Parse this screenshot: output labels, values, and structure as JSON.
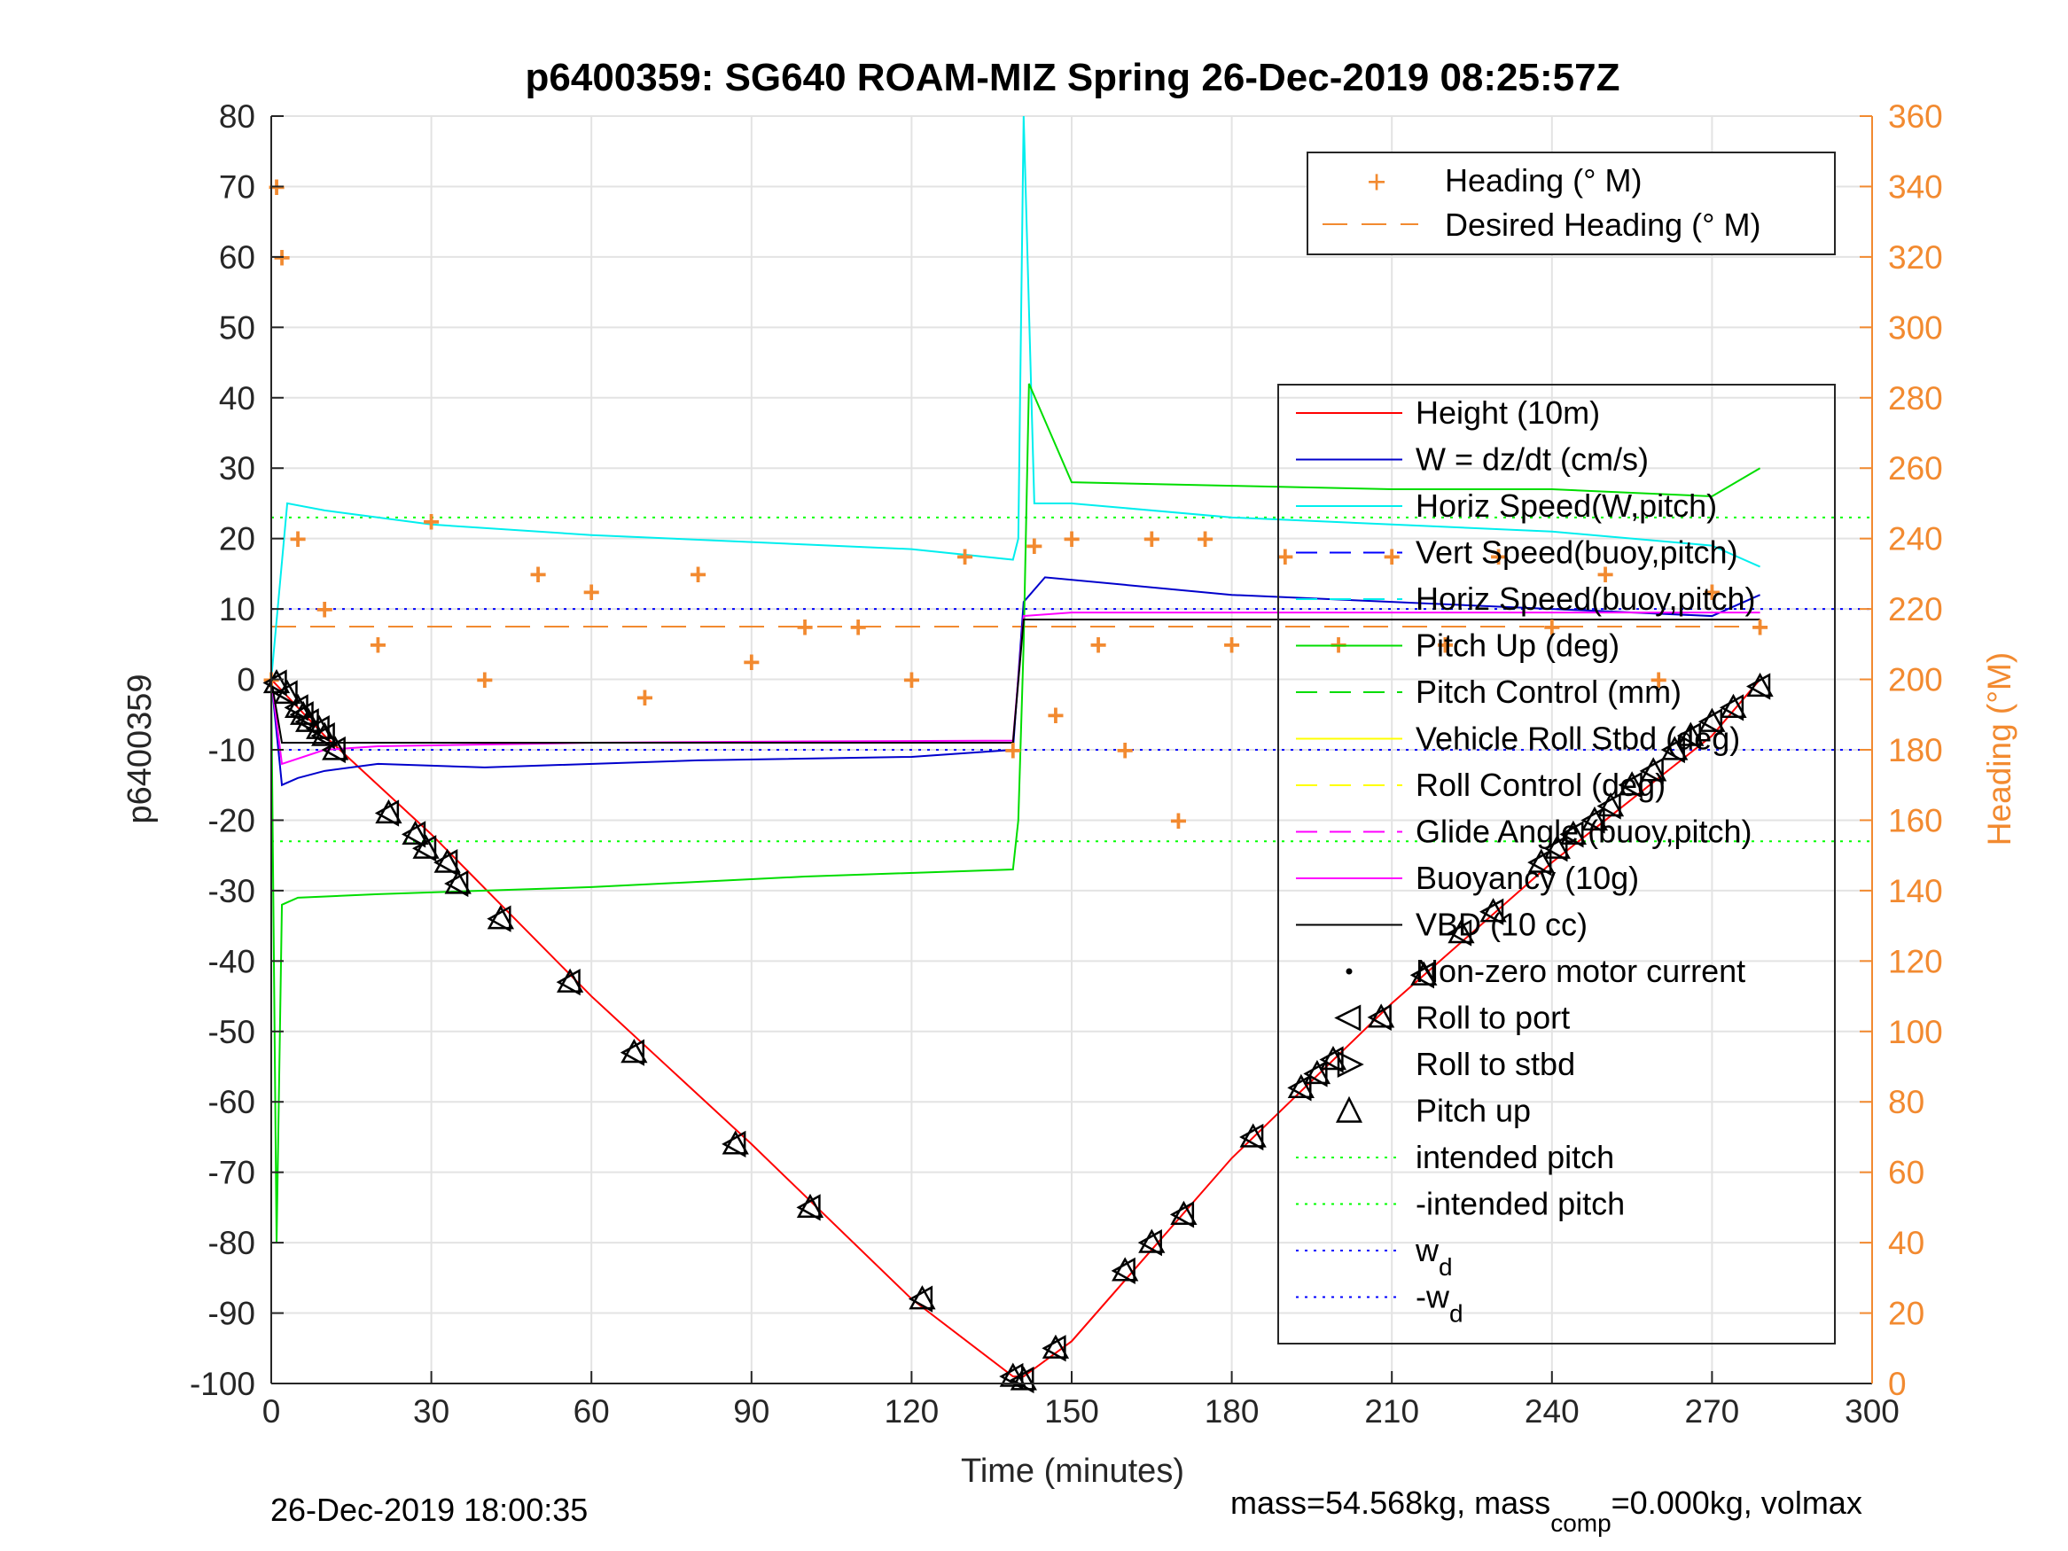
{
  "chart_data": {
    "type": "line",
    "title": "p6400359: SG640 ROAM-MIZ Spring 26-Dec-2019 08:25:57Z",
    "xlabel": "Time (minutes)",
    "ylabel": "p6400359",
    "ylabel_right": "Heading (°M)",
    "xlim": [
      0,
      300
    ],
    "ylim": [
      -100,
      80
    ],
    "ylim_right": [
      0,
      360
    ],
    "x_ticks": [
      "0",
      "30",
      "60",
      "90",
      "120",
      "150",
      "180",
      "210",
      "240",
      "270",
      "300"
    ],
    "y_ticks": [
      "80",
      "70",
      "60",
      "50",
      "40",
      "30",
      "20",
      "10",
      "0",
      "-10",
      "-20",
      "-30",
      "-40",
      "-50",
      "-60",
      "-70",
      "-80",
      "-90",
      "-100"
    ],
    "y_right_ticks": [
      "360",
      "340",
      "320",
      "300",
      "280",
      "260",
      "240",
      "220",
      "200",
      "180",
      "160",
      "140",
      "120",
      "100",
      "80",
      "60",
      "40",
      "20",
      "0"
    ],
    "grid": true,
    "legend_top": [
      "Heading (° M)",
      "Desired Heading (° M)"
    ],
    "legend_main": [
      {
        "label": "Height (10m)",
        "color": "#ff0000",
        "style": "solid"
      },
      {
        "label": "W = dz/dt (cm/s)",
        "color": "#0000cc",
        "style": "solid"
      },
      {
        "label": "Horiz Speed(W,pitch)",
        "color": "#00eeee",
        "style": "solid"
      },
      {
        "label": "Vert Speed(buoy,pitch)",
        "color": "#0000ff",
        "style": "dashed"
      },
      {
        "label": "Horiz Speed(buoy,pitch)",
        "color": "#00eeee",
        "style": "dashed"
      },
      {
        "label": "Pitch Up (deg)",
        "color": "#00dd00",
        "style": "solid"
      },
      {
        "label": "Pitch Control (mm)",
        "color": "#00dd00",
        "style": "dashed"
      },
      {
        "label": "Vehicle Roll Stbd (deg)",
        "color": "#ffff00",
        "style": "solid"
      },
      {
        "label": "Roll Control (deg)",
        "color": "#ffff00",
        "style": "dashed"
      },
      {
        "label": "Glide Angle (buoy,pitch)",
        "color": "#ff00ff",
        "style": "dashed"
      },
      {
        "label": "Buoyancy (10g)",
        "color": "#ff00ff",
        "style": "solid"
      },
      {
        "label": "VBD (10 cc)",
        "color": "#000000",
        "style": "solid"
      },
      {
        "label": "Non-zero motor current",
        "color": "#000000",
        "style": "dot"
      },
      {
        "label": "Roll to port",
        "color": "#000000",
        "style": "tri-left"
      },
      {
        "label": "Roll to stbd",
        "color": "#000000",
        "style": "tri-right"
      },
      {
        "label": "Pitch up",
        "color": "#000000",
        "style": "tri-up"
      },
      {
        "label": "intended pitch",
        "color": "#00ff00",
        "style": "dotted"
      },
      {
        "label": "-intended pitch",
        "color": "#00ff00",
        "style": "dotted"
      },
      {
        "label": "w",
        "sub": "d",
        "color": "#0000ff",
        "style": "dotted"
      },
      {
        "label": "-w",
        "sub": "d",
        "color": "#0000ff",
        "style": "dotted"
      }
    ],
    "series": [
      {
        "name": "Height (10m)",
        "x": [
          0,
          10,
          30,
          60,
          90,
          120,
          139,
          141,
          150,
          180,
          210,
          240,
          270,
          279
        ],
        "y": [
          0,
          -8,
          -22,
          -45,
          -66,
          -88,
          -99,
          -99,
          -94,
          -68,
          -46,
          -26,
          -8,
          0
        ]
      },
      {
        "name": "W = dz/dt (cm/s)",
        "x": [
          0,
          2,
          5,
          10,
          20,
          40,
          80,
          120,
          139,
          141,
          145,
          180,
          210,
          240,
          270,
          279
        ],
        "y": [
          0,
          -15,
          -14,
          -13,
          -12,
          -12.5,
          -11.5,
          -11,
          -10,
          11,
          14.5,
          12,
          11,
          10,
          9,
          12
        ]
      },
      {
        "name": "Horiz Speed(W,pitch)",
        "x": [
          0,
          3,
          10,
          30,
          60,
          90,
          120,
          139,
          140,
          141,
          143,
          150,
          180,
          210,
          240,
          270,
          279
        ],
        "y": [
          0,
          25,
          24,
          22,
          20.5,
          19.5,
          18.5,
          17,
          20,
          80,
          25,
          25,
          23,
          22,
          21,
          19,
          16
        ]
      },
      {
        "name": "Pitch Up (deg)",
        "x": [
          0,
          1,
          2,
          5,
          20,
          60,
          100,
          139,
          140,
          141,
          142,
          150,
          180,
          210,
          240,
          270,
          279
        ],
        "y": [
          0,
          -80,
          -32,
          -31,
          -30.5,
          -29.5,
          -28,
          -27,
          -20,
          5,
          42,
          28,
          27.5,
          27,
          27,
          26,
          30
        ]
      },
      {
        "name": "Buoyancy (10g)",
        "x": [
          0,
          2,
          10,
          20,
          60,
          100,
          139,
          141,
          150,
          279
        ],
        "y": [
          0,
          -12,
          -10,
          -9.5,
          -9,
          -8.8,
          -8.7,
          9,
          9.5,
          9.5
        ]
      },
      {
        "name": "VBD (10 cc)",
        "x": [
          0,
          2,
          10,
          60,
          139,
          141,
          279
        ],
        "y": [
          0,
          -9,
          -9,
          -9,
          -9,
          8.5,
          8.5
        ]
      },
      {
        "name": "Heading (° M)",
        "x": [
          0,
          1,
          2,
          5,
          10,
          20,
          30,
          40,
          50,
          60,
          70,
          80,
          90,
          100,
          110,
          120,
          130,
          139,
          143,
          147,
          150,
          155,
          160,
          165,
          170,
          175,
          180,
          190,
          200,
          210,
          220,
          230,
          240,
          250,
          260,
          270,
          279
        ],
        "y": [
          200,
          340,
          320,
          240,
          220,
          210,
          245,
          200,
          230,
          225,
          195,
          230,
          205,
          215,
          215,
          200,
          235,
          180,
          238,
          190,
          240,
          210,
          180,
          240,
          160,
          240,
          210,
          235,
          210,
          235,
          210,
          235,
          215,
          230,
          200,
          225,
          215
        ]
      }
    ],
    "reference_lines": {
      "intended_pitch": 23,
      "minus_intended_pitch": -23,
      "w_d": 10,
      "minus_w_d": -10,
      "desired_heading": 215
    },
    "marker_points": [
      {
        "x": 1,
        "y": -0.5
      },
      {
        "x": 3,
        "y": -2
      },
      {
        "x": 5,
        "y": -4
      },
      {
        "x": 6,
        "y": -5
      },
      {
        "x": 7,
        "y": -6
      },
      {
        "x": 9,
        "y": -7
      },
      {
        "x": 10,
        "y": -8
      },
      {
        "x": 12,
        "y": -10
      },
      {
        "x": 22,
        "y": -19
      },
      {
        "x": 27,
        "y": -22
      },
      {
        "x": 29,
        "y": -24
      },
      {
        "x": 33,
        "y": -26
      },
      {
        "x": 35,
        "y": -29
      },
      {
        "x": 43,
        "y": -34
      },
      {
        "x": 56,
        "y": -43
      },
      {
        "x": 68,
        "y": -53
      },
      {
        "x": 87,
        "y": -66
      },
      {
        "x": 101,
        "y": -75
      },
      {
        "x": 122,
        "y": -88
      },
      {
        "x": 139,
        "y": -99
      },
      {
        "x": 141,
        "y": -99.5
      },
      {
        "x": 147,
        "y": -95
      },
      {
        "x": 160,
        "y": -84
      },
      {
        "x": 165,
        "y": -80
      },
      {
        "x": 171,
        "y": -76
      },
      {
        "x": 184,
        "y": -65
      },
      {
        "x": 193,
        "y": -58
      },
      {
        "x": 196,
        "y": -56
      },
      {
        "x": 199,
        "y": -54
      },
      {
        "x": 208,
        "y": -48
      },
      {
        "x": 216,
        "y": -42
      },
      {
        "x": 223,
        "y": -36
      },
      {
        "x": 229,
        "y": -33
      },
      {
        "x": 238,
        "y": -26
      },
      {
        "x": 241,
        "y": -24
      },
      {
        "x": 244,
        "y": -22
      },
      {
        "x": 248,
        "y": -20
      },
      {
        "x": 251,
        "y": -18
      },
      {
        "x": 255,
        "y": -15
      },
      {
        "x": 259,
        "y": -13
      },
      {
        "x": 263,
        "y": -10
      },
      {
        "x": 266,
        "y": -8
      },
      {
        "x": 270,
        "y": -6
      },
      {
        "x": 274,
        "y": -4
      },
      {
        "x": 279,
        "y": -1
      }
    ]
  },
  "footer": {
    "left_text": "26-Dec-2019 18:00:35",
    "right_text": "mass=54.568kg, mass",
    "right_sub": "comp",
    "right_tail": "=0.000kg, volmax"
  },
  "colors": {
    "heading": "#f28a30",
    "axis": "#262626"
  }
}
